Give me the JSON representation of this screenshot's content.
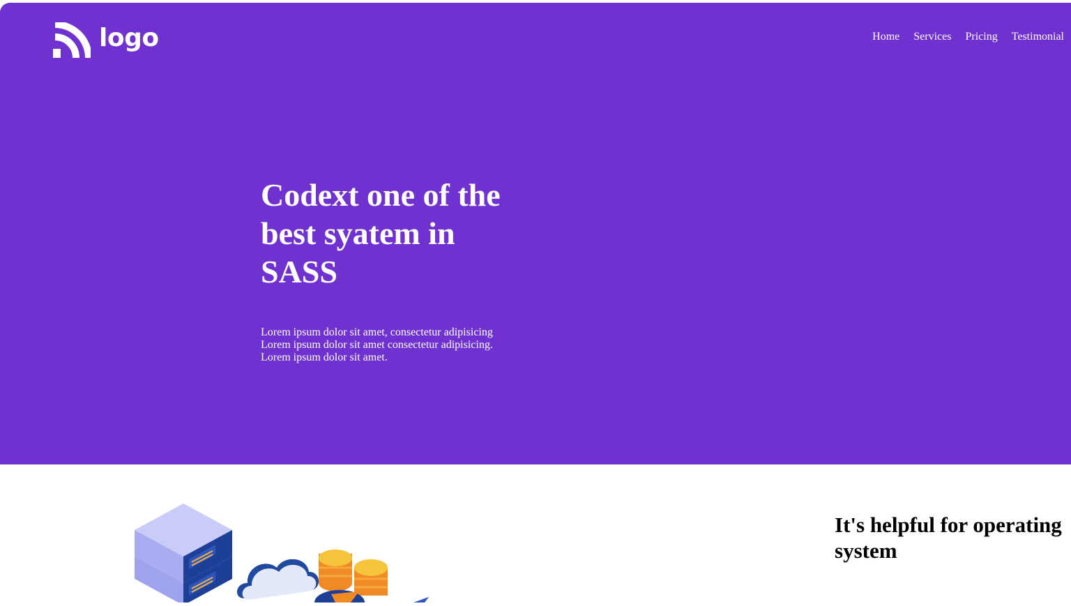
{
  "header": {
    "logo_text": "logo",
    "logo_icon": "rss-feed-icon",
    "nav": [
      {
        "label": "Home"
      },
      {
        "label": "Services"
      },
      {
        "label": "Pricing"
      },
      {
        "label": "Testimonial"
      }
    ]
  },
  "hero": {
    "title": "Codext one of the best syatem in SASS",
    "text": "Lorem ipsum dolor sit amet, consectetur adipisicing Lorem ipsum dolor sit amet consectetur adipisicing. Lorem ipsum dolor sit amet.",
    "background_color": "#6f31cf"
  },
  "feature": {
    "title": "It's helpful for operating system",
    "illustration_icons": [
      "server-rack-icon",
      "cloud-icon",
      "coin-stack-icon",
      "rocket-icon"
    ]
  }
}
